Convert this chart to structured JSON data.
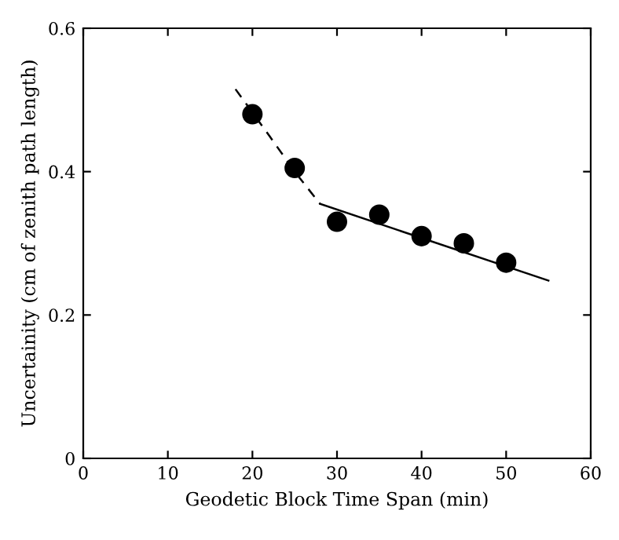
{
  "chart_data": {
    "type": "scatter",
    "xlabel": "Geodetic Block Time Span (min)",
    "ylabel": "Uncertainity (cm of zenith path length)",
    "xlim": [
      0,
      60
    ],
    "ylim": [
      0,
      0.6
    ],
    "xticks": [
      0,
      10,
      20,
      30,
      40,
      50,
      60
    ],
    "yticks": [
      0,
      0.2,
      0.4,
      0.6
    ],
    "grid": false,
    "series": [
      {
        "color": "#000000",
        "marker": "circle",
        "x": [
          20,
          25,
          30,
          35,
          40,
          45,
          50
        ],
        "values": [
          0.48,
          0.405,
          0.33,
          0.34,
          0.31,
          0.3,
          0.273
        ]
      },
      {
        "type": "line",
        "color": "#000000",
        "line_style": "dashed",
        "marker": "none",
        "x": [
          18,
          22,
          25,
          28
        ],
        "values": [
          0.515,
          0.45,
          0.4,
          0.355
        ]
      },
      {
        "type": "line",
        "color": "#000000",
        "line_style": "solid",
        "marker": "none",
        "x": [
          28,
          55
        ],
        "values": [
          0.355,
          0.248
        ]
      }
    ]
  }
}
